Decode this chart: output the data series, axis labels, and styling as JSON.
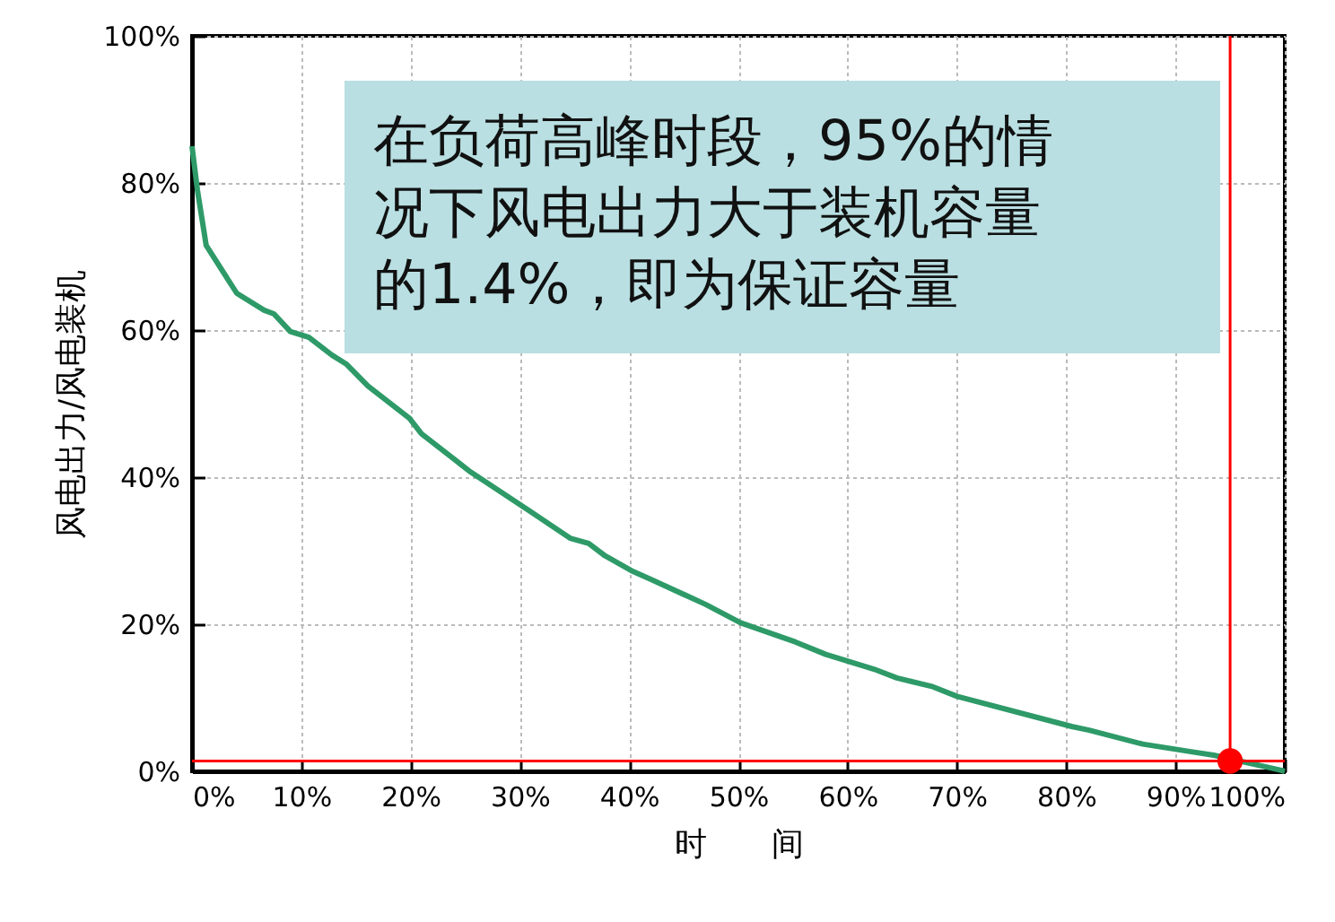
{
  "chart_data": {
    "type": "line",
    "xlabel": "时　　间",
    "ylabel": "风电出力/风电装机",
    "annotations": [
      "在负荷高峰时段，95%的情况下风电出力大于装机容量的1.4%，即为保证容量"
    ],
    "xlim": [
      0,
      100
    ],
    "ylim": [
      0,
      100
    ],
    "xticks": [
      {
        "value": 0,
        "label": "0%"
      },
      {
        "value": 10,
        "label": "10%"
      },
      {
        "value": 20,
        "label": "20%"
      },
      {
        "value": 30,
        "label": "30%"
      },
      {
        "value": 40,
        "label": "40%"
      },
      {
        "value": 50,
        "label": "50%"
      },
      {
        "value": 60,
        "label": "60%"
      },
      {
        "value": 70,
        "label": "70%"
      },
      {
        "value": 80,
        "label": "80%"
      },
      {
        "value": 90,
        "label": "90%"
      },
      {
        "value": 100,
        "label": "100%"
      }
    ],
    "yticks": [
      {
        "value": 0,
        "label": "0%"
      },
      {
        "value": 20,
        "label": "20%"
      },
      {
        "value": 40,
        "label": "40%"
      },
      {
        "value": 60,
        "label": "60%"
      },
      {
        "value": 80,
        "label": "80%"
      },
      {
        "value": 100,
        "label": "100%"
      }
    ],
    "grid": true,
    "ref_lines": [
      {
        "axis": "y",
        "value": 1.4,
        "color": "#ff0000"
      },
      {
        "axis": "x",
        "value": 95,
        "color": "#ff0000"
      }
    ],
    "series": [
      {
        "type": "line",
        "color": "#2e9a68",
        "x": [
          0,
          0.5,
          1.3,
          4.1,
          6.6,
          7.5,
          9,
          10.7,
          12.8,
          14.1,
          16.1,
          19.9,
          21,
          25.5,
          30.9,
          34.6,
          36.3,
          37.8,
          40.2,
          42,
          47,
          50.2,
          55.2,
          58,
          62.4,
          64.5,
          67.8,
          70,
          80.5,
          82.1,
          87,
          91.3,
          93.5,
          99.5,
          100
        ],
        "values": [
          85,
          79,
          71.5,
          65,
          62.7,
          62.2,
          59.8,
          59,
          56.6,
          55.4,
          52.4,
          48,
          45.9,
          40.7,
          35.4,
          31.7,
          31,
          29.3,
          27.3,
          26.1,
          22.7,
          20.2,
          17.6,
          15.9,
          13.9,
          12.7,
          11.5,
          10.2,
          6.1,
          5.6,
          3.7,
          2.7,
          2.2,
          0.2,
          0
        ]
      },
      {
        "type": "scatter",
        "color": "#ff0000",
        "marker": "circle",
        "x": [
          95
        ],
        "values": [
          1.4
        ]
      }
    ]
  }
}
